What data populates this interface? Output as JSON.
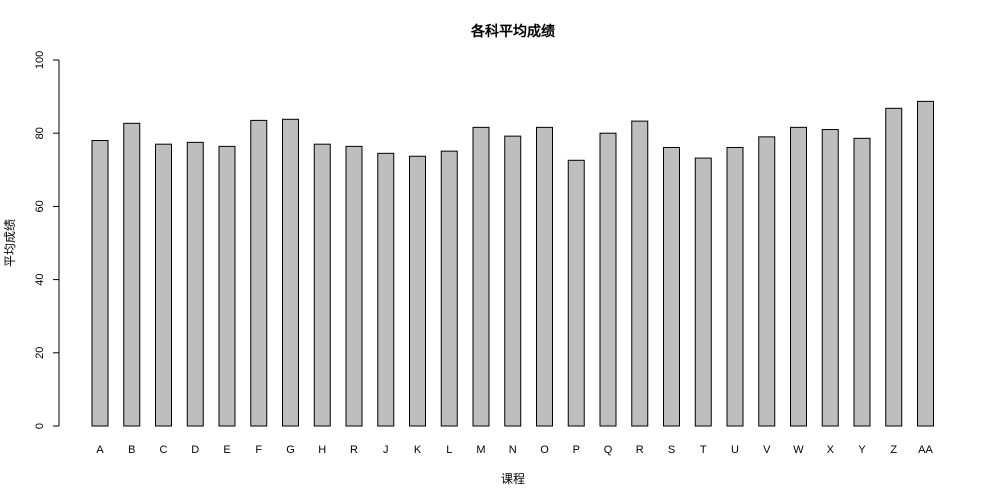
{
  "chart_data": {
    "type": "bar",
    "title": "各科平均成绩",
    "xlabel": "课程",
    "ylabel": "平均成绩",
    "categories": [
      "A",
      "B",
      "C",
      "D",
      "E",
      "F",
      "G",
      "H",
      "R",
      "J",
      "K",
      "L",
      "M",
      "N",
      "O",
      "P",
      "Q",
      "R",
      "S",
      "T",
      "U",
      "V",
      "W",
      "X",
      "Y",
      "Z",
      "AA"
    ],
    "values": [
      78,
      82.7,
      77,
      77.5,
      76.4,
      83.5,
      83.8,
      77,
      76.4,
      74.5,
      73.7,
      75.1,
      81.6,
      79.2,
      81.6,
      72.6,
      80,
      83.3,
      76.1,
      73.2,
      76.1,
      79,
      81.6,
      81,
      78.6,
      86.8,
      88.7
    ],
    "ylim": [
      0,
      100
    ],
    "yticks": [
      0,
      20,
      40,
      60,
      80,
      100
    ],
    "grid": false,
    "colors": {
      "bar_fill": "#bebebe",
      "bar_stroke": "#000000"
    }
  }
}
